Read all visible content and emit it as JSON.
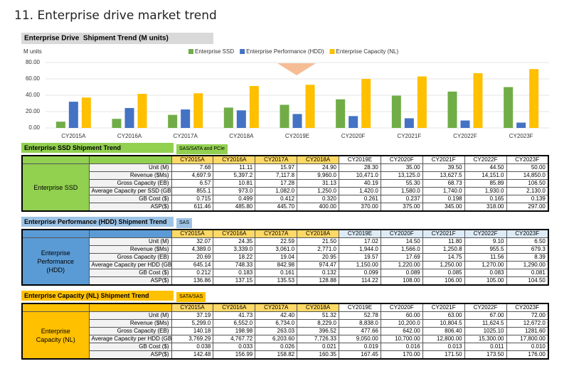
{
  "title": "11. Enterprise drive market trend",
  "chart_data": {
    "type": "bar",
    "title": "Enterprise Drive  Shipment Trend (M units)",
    "y_label": "M units",
    "categories": [
      "CY2015A",
      "CY2016A",
      "CY2017A",
      "CY2018A",
      "CY2019E",
      "CY2020F",
      "CY2021F",
      "CY2022F",
      "CY2023F"
    ],
    "series": [
      {
        "name": "Enterprise SSD",
        "color": "#70ad47",
        "values": [
          7.68,
          11.11,
          15.97,
          24.9,
          28.3,
          35.0,
          39.5,
          44.5,
          50.0
        ]
      },
      {
        "name": "Enterprise Performance (HDD)",
        "color": "#4472c4",
        "values": [
          32.07,
          24.35,
          22.59,
          21.5,
          17.02,
          14.5,
          11.8,
          9.1,
          6.5
        ]
      },
      {
        "name": "Enterprise Capacity (NL)",
        "color": "#ffc000",
        "values": [
          37.19,
          41.73,
          42.4,
          51.32,
          52.78,
          60.0,
          63.0,
          67.0,
          72.0
        ]
      }
    ],
    "ylim": [
      0,
      80
    ],
    "yticks": [
      {
        "value": 0,
        "label": "0.00"
      },
      {
        "value": 20,
        "label": "20.00"
      },
      {
        "value": 40,
        "label": "40.00"
      },
      {
        "value": 60,
        "label": "60.00"
      },
      {
        "value": 80,
        "label": "80.00"
      }
    ],
    "grid": true,
    "legend": "top"
  },
  "tables": [
    {
      "title": "Enterprise SSD Shipment Trend",
      "note": "SAS/SATA and PCIe",
      "group": "Enterprise SSD",
      "color": "#92d050",
      "columns": [
        "CY2015A",
        "CY2016A",
        "CY2017A",
        "CY2018A",
        "CY2019E",
        "CY2020F",
        "CY2021F",
        "CY2022F",
        "CY2023F"
      ],
      "rows": [
        {
          "label": "Unit (M)",
          "values": [
            "7.68",
            "11.11",
            "15.97",
            "24.90",
            "28.30",
            "35.00",
            "39.50",
            "44.50",
            "50.00"
          ]
        },
        {
          "label": "Revenue ($Ms)",
          "values": [
            "4,697.9",
            "5,397.2",
            "7,117.8",
            "9,960.0",
            "10,471.0",
            "13,125.0",
            "13,627.5",
            "14,151.0",
            "14,850.0"
          ]
        },
        {
          "label": "Gross Capacity (EB)",
          "values": [
            "6.57",
            "10.81",
            "17.28",
            "31.13",
            "40.19",
            "55.30",
            "68.73",
            "85.89",
            "106.50"
          ]
        },
        {
          "label": "Average Capacity per SSD (GB)",
          "values": [
            "855.1",
            "973.0",
            "1,082.0",
            "1,250.0",
            "1,420.0",
            "1,580.0",
            "1,740.0",
            "1,930.0",
            "2,130.0"
          ]
        },
        {
          "label": "GB Cost ($)",
          "values": [
            "0.715",
            "0.499",
            "0.412",
            "0.320",
            "0.261",
            "0.237",
            "0.198",
            "0.165",
            "0.139"
          ]
        },
        {
          "label": "ASP($)",
          "values": [
            "611.46",
            "485.80",
            "445.70",
            "400.00",
            "370.00",
            "375.00",
            "345.00",
            "318.00",
            "297.00"
          ]
        }
      ]
    },
    {
      "title": "Enterprise Performance (HDD) Shipment Trend",
      "note": "SAS",
      "group": "Enterprise Performance (HDD)",
      "color": "#5b9bd5",
      "columns": [
        "CY2015A",
        "CY2016A",
        "CY2017A",
        "CY2018A",
        "CY2019E",
        "CY2020F",
        "CY2021F",
        "CY2022F",
        "CY2023F"
      ],
      "rows": [
        {
          "label": "Unit (M)",
          "values": [
            "32.07",
            "24.35",
            "22.59",
            "21.50",
            "17.02",
            "14.50",
            "11.80",
            "9.10",
            "6.50"
          ]
        },
        {
          "label": "Revenue ($Ms)",
          "values": [
            "4,389.0",
            "3,339.0",
            "3,061.0",
            "2,771.0",
            "1,944.0",
            "1,566.0",
            "1,250.8",
            "955.5",
            "679.3"
          ]
        },
        {
          "label": "Gross Capacity (EB)",
          "values": [
            "20.69",
            "18.22",
            "19.04",
            "20.95",
            "19.57",
            "17.69",
            "14.75",
            "11.56",
            "8.39"
          ]
        },
        {
          "label": "Average Capacity per HDD (GB)",
          "values": [
            "645.14",
            "748.33",
            "842.98",
            "974.47",
            "1,150.00",
            "1,220.00",
            "1,250.00",
            "1,270.00",
            "1,290.00"
          ]
        },
        {
          "label": "GB Cost ($)",
          "values": [
            "0.212",
            "0.183",
            "0.161",
            "0.132",
            "0.099",
            "0.089",
            "0.085",
            "0.083",
            "0.081"
          ]
        },
        {
          "label": "ASP($)",
          "values": [
            "136.86",
            "137.15",
            "135.53",
            "128.88",
            "114.22",
            "108.00",
            "106.00",
            "105.00",
            "104.50"
          ]
        }
      ]
    },
    {
      "title": "Enterprise Capacity (NL) Shipment Trend",
      "note": "SATA/SAS",
      "group": "Enterprise Capacity (NL)",
      "color": "#ffc000",
      "columns": [
        "CY2015A",
        "CY2016A",
        "CY2017A",
        "CY2018A",
        "CY2019E",
        "CY2020F",
        "CY2021F",
        "CY2022F",
        "CY2023F"
      ],
      "rows": [
        {
          "label": "Unit (M)",
          "values": [
            "37.19",
            "41.73",
            "42.40",
            "51.32",
            "52.78",
            "60.00",
            "63.00",
            "67.00",
            "72.00"
          ]
        },
        {
          "label": "Revenue ($Ms)",
          "values": [
            "5,299.0",
            "6,552.0",
            "6,734.0",
            "8,229.0",
            "8,838.0",
            "10,200.0",
            "10,804.5",
            "11,624.5",
            "12,672.0"
          ]
        },
        {
          "label": "Gross Capacity (EB)",
          "values": [
            "140.18",
            "198.98",
            "263.03",
            "396.52",
            "477.66",
            "642.00",
            "806.40",
            "1025.10",
            "1281.60"
          ]
        },
        {
          "label": "Average Capacity per HDD (GB)",
          "values": [
            "3,769.29",
            "4,767.72",
            "6,203.60",
            "7,726.33",
            "9,050.00",
            "10,700.00",
            "12,800.00",
            "15,300.00",
            "17,800.00"
          ]
        },
        {
          "label": "GB Cost ($)",
          "values": [
            "0.038",
            "0.033",
            "0.026",
            "0.021",
            "0.019",
            "0.016",
            "0.013",
            "0.011",
            "0.010"
          ]
        },
        {
          "label": "ASP($)",
          "values": [
            "142.48",
            "156.99",
            "158.82",
            "160.35",
            "167.45",
            "170.00",
            "171.50",
            "173.50",
            "176.00"
          ]
        }
      ]
    }
  ]
}
